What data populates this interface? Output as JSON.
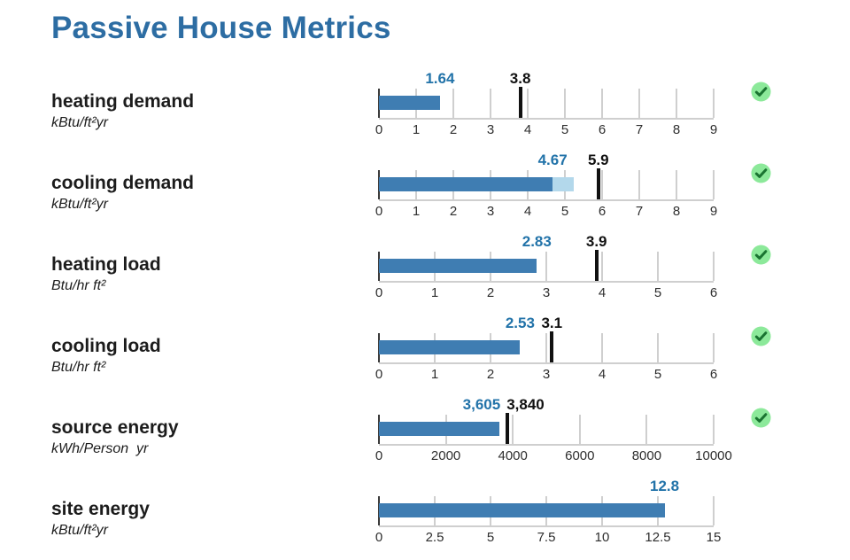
{
  "page_title": "Passive House Metrics",
  "colors": {
    "title_blue": "#2d6da3",
    "bar_blue": "#3f7db2",
    "bar_light_blue": "#b3d8eb",
    "value_blue": "#2273a9",
    "limit_black": "#111111",
    "grid_gray": "#cfcfcf",
    "zero_line": "#3b3b3b",
    "check_circle_green": "#8ce99a",
    "check_mark_green": "#1a7431"
  },
  "chart_data": {
    "type": "bar",
    "orientation": "horizontal",
    "title": "Passive House Metrics",
    "legend": "none",
    "grid": true,
    "metrics": [
      {
        "name": "heating demand",
        "unit": "kBtu/ft²yr",
        "value": 1.64,
        "value_label": "1.64",
        "limit": 3.8,
        "limit_label": "3.8",
        "axis_max": 9,
        "ticks": [
          0,
          1,
          2,
          3,
          4,
          5,
          6,
          7,
          8,
          9
        ],
        "tick_labels": [
          "0",
          "1",
          "2",
          "3",
          "4",
          "5",
          "6",
          "7",
          "8",
          "9"
        ],
        "passed": true
      },
      {
        "name": "cooling demand",
        "unit": "kBtu/ft²yr",
        "value": 4.67,
        "value_label": "4.67",
        "value_extension": 5.24,
        "limit": 5.9,
        "limit_label": "5.9",
        "axis_max": 9,
        "ticks": [
          0,
          1,
          2,
          3,
          4,
          5,
          6,
          7,
          8,
          9
        ],
        "tick_labels": [
          "0",
          "1",
          "2",
          "3",
          "4",
          "5",
          "6",
          "7",
          "8",
          "9"
        ],
        "passed": true
      },
      {
        "name": "heating load",
        "unit": "Btu/hr ft²",
        "value": 2.83,
        "value_label": "2.83",
        "limit": 3.9,
        "limit_label": "3.9",
        "axis_max": 6,
        "ticks": [
          0,
          1,
          2,
          3,
          4,
          5,
          6
        ],
        "tick_labels": [
          "0",
          "1",
          "2",
          "3",
          "4",
          "5",
          "6"
        ],
        "passed": true
      },
      {
        "name": "cooling load",
        "unit": "Btu/hr ft²",
        "value": 2.53,
        "value_label": "2.53",
        "limit": 3.1,
        "limit_label": "3.1",
        "axis_max": 6,
        "ticks": [
          0,
          1,
          2,
          3,
          4,
          5,
          6
        ],
        "tick_labels": [
          "0",
          "1",
          "2",
          "3",
          "4",
          "5",
          "6"
        ],
        "passed": true
      },
      {
        "name": "source energy",
        "unit": "kWh/Person  yr",
        "value": 3605,
        "value_label": "3,605",
        "limit": 3840,
        "limit_label": "3,840",
        "axis_max": 10000,
        "ticks": [
          0,
          2000,
          4000,
          6000,
          8000,
          10000
        ],
        "tick_labels": [
          "0",
          "2000",
          "4000",
          "6000",
          "8000",
          "10000"
        ],
        "passed": true
      },
      {
        "name": "site energy",
        "unit": "kBtu/ft²yr",
        "value": 12.8,
        "value_label": "12.8",
        "limit": null,
        "limit_label": null,
        "axis_max": 15,
        "ticks": [
          0,
          2.5,
          5,
          7.5,
          10,
          12.5,
          15
        ],
        "tick_labels": [
          "0",
          "2.5",
          "5",
          "7.5",
          "10",
          "12.5",
          "15"
        ],
        "passed": null
      }
    ]
  }
}
